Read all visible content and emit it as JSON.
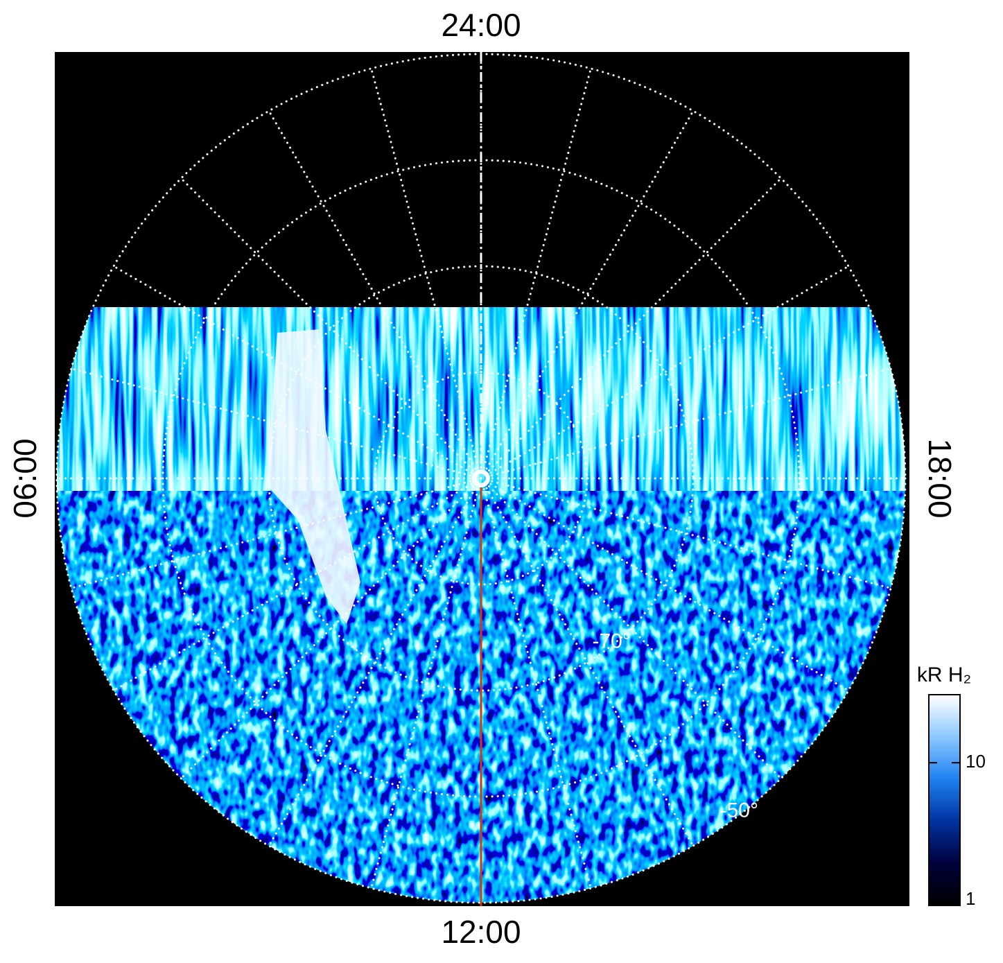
{
  "chart_data": {
    "type": "polar-image",
    "local_time_ticks": [
      {
        "value": 24,
        "label": "24:00"
      },
      {
        "value": 6,
        "label": "06:00"
      },
      {
        "value": 12,
        "label": "12:00"
      },
      {
        "value": 18,
        "label": "18:00"
      }
    ],
    "latlim": [
      -90,
      -50
    ],
    "lat_grid": [
      -80,
      -70,
      -60,
      -50
    ],
    "lat_labels": [
      {
        "value": -70,
        "label": "-70°"
      },
      {
        "value": -50,
        "label": "-50°"
      }
    ],
    "lon_grid_hours": 1,
    "colorbar": {
      "title": "kR H₂",
      "log": true,
      "clim": [
        1,
        30
      ],
      "ticks": [
        1,
        10
      ],
      "colormap": [
        "#000000",
        "#00003c",
        "#0032a0",
        "#1e82f0",
        "#8cc8ff",
        "#ffffff"
      ]
    },
    "marker_color": "#d03a10"
  }
}
